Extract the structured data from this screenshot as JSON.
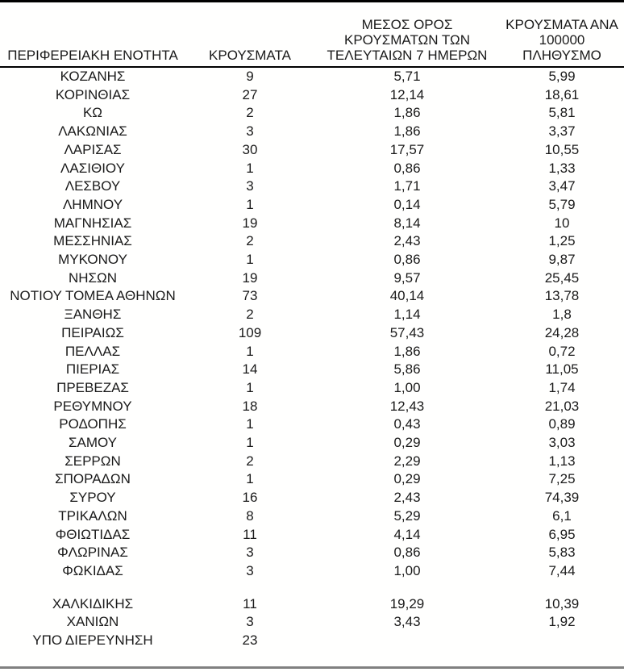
{
  "page": {
    "background_color": "#fffffe",
    "text_color": "#1a1a1a",
    "top_rule_color": "#000000",
    "header_rule_color": "#000000",
    "bottom_rule_color": "#808080"
  },
  "table": {
    "columns": [
      {
        "id": "region",
        "label": "ΠΕΡΙΦΕΡΕΙΑΚΗ ΕΝΟΤΗΤΑ"
      },
      {
        "id": "cases",
        "label": "ΚΡΟΥΣΜΑΤΑ"
      },
      {
        "id": "avg_7day",
        "label": "ΜΕΣΟΣ ΟΡΟΣ\nΚΡΟΥΣΜΑΤΩΝ ΤΩΝ\nΤΕΛΕΥΤΑΙΩΝ 7 ΗΜΕΡΩΝ"
      },
      {
        "id": "per_100k",
        "label": "ΚΡΟΥΣΜΑΤΑ ΑΝΑ\n100000 ΠΛΗΘΥΣΜΟ"
      }
    ],
    "rows": [
      {
        "region": "ΚΟΖΑΝΗΣ",
        "cases": "9",
        "avg_7day": "5,71",
        "per_100k": "5,99"
      },
      {
        "region": "ΚΟΡΙΝΘΙΑΣ",
        "cases": "27",
        "avg_7day": "12,14",
        "per_100k": "18,61"
      },
      {
        "region": "ΚΩ",
        "cases": "2",
        "avg_7day": "1,86",
        "per_100k": "5,81"
      },
      {
        "region": "ΛΑΚΩΝΙΑΣ",
        "cases": "3",
        "avg_7day": "1,86",
        "per_100k": "3,37"
      },
      {
        "region": "ΛΑΡΙΣΑΣ",
        "cases": "30",
        "avg_7day": "17,57",
        "per_100k": "10,55"
      },
      {
        "region": "ΛΑΣΙΘΙΟΥ",
        "cases": "1",
        "avg_7day": "0,86",
        "per_100k": "1,33"
      },
      {
        "region": "ΛΕΣΒΟΥ",
        "cases": "3",
        "avg_7day": "1,71",
        "per_100k": "3,47"
      },
      {
        "region": "ΛΗΜΝΟΥ",
        "cases": "1",
        "avg_7day": "0,14",
        "per_100k": "5,79"
      },
      {
        "region": "ΜΑΓΝΗΣΙΑΣ",
        "cases": "19",
        "avg_7day": "8,14",
        "per_100k": "10"
      },
      {
        "region": "ΜΕΣΣΗΝΙΑΣ",
        "cases": "2",
        "avg_7day": "2,43",
        "per_100k": "1,25"
      },
      {
        "region": "ΜΥΚΟΝΟΥ",
        "cases": "1",
        "avg_7day": "0,86",
        "per_100k": "9,87"
      },
      {
        "region": "ΝΗΣΩΝ",
        "cases": "19",
        "avg_7day": "9,57",
        "per_100k": "25,45"
      },
      {
        "region": "ΝΟΤΙΟΥ ΤΟΜΕΑ ΑΘΗΝΩΝ",
        "cases": "73",
        "avg_7day": "40,14",
        "per_100k": "13,78"
      },
      {
        "region": "ΞΑΝΘΗΣ",
        "cases": "2",
        "avg_7day": "1,14",
        "per_100k": "1,8"
      },
      {
        "region": "ΠΕΙΡΑΙΩΣ",
        "cases": "109",
        "avg_7day": "57,43",
        "per_100k": "24,28"
      },
      {
        "region": "ΠΕΛΛΑΣ",
        "cases": "1",
        "avg_7day": "1,86",
        "per_100k": "0,72"
      },
      {
        "region": "ΠΙΕΡΙΑΣ",
        "cases": "14",
        "avg_7day": "5,86",
        "per_100k": "11,05"
      },
      {
        "region": "ΠΡΕΒΕΖΑΣ",
        "cases": "1",
        "avg_7day": "1,00",
        "per_100k": "1,74"
      },
      {
        "region": "ΡΕΘΥΜΝΟΥ",
        "cases": "18",
        "avg_7day": "12,43",
        "per_100k": "21,03"
      },
      {
        "region": "ΡΟΔΟΠΗΣ",
        "cases": "1",
        "avg_7day": "0,43",
        "per_100k": "0,89"
      },
      {
        "region": "ΣΑΜΟΥ",
        "cases": "1",
        "avg_7day": "0,29",
        "per_100k": "3,03"
      },
      {
        "region": "ΣΕΡΡΩΝ",
        "cases": "2",
        "avg_7day": "2,29",
        "per_100k": "1,13"
      },
      {
        "region": "ΣΠΟΡΑΔΩΝ",
        "cases": "1",
        "avg_7day": "0,29",
        "per_100k": "7,25"
      },
      {
        "region": "ΣΥΡΟΥ",
        "cases": "16",
        "avg_7day": "2,43",
        "per_100k": "74,39"
      },
      {
        "region": "ΤΡΙΚΑΛΩΝ",
        "cases": "8",
        "avg_7day": "5,29",
        "per_100k": "6,1"
      },
      {
        "region": "ΦΘΙΩΤΙΔΑΣ",
        "cases": "11",
        "avg_7day": "4,14",
        "per_100k": "6,95"
      },
      {
        "region": "ΦΛΩΡΙΝΑΣ",
        "cases": "3",
        "avg_7day": "0,86",
        "per_100k": "5,83"
      },
      {
        "region": "ΦΩΚΙΔΑΣ",
        "cases": "3",
        "avg_7day": "1,00",
        "per_100k": "7,44"
      },
      {
        "region": "",
        "cases": "",
        "avg_7day": "",
        "per_100k": ""
      },
      {
        "region": "ΧΑΛΚΙΔΙΚΗΣ",
        "cases": "11",
        "avg_7day": "19,29",
        "per_100k": "10,39"
      },
      {
        "region": "ΧΑΝΙΩΝ",
        "cases": "3",
        "avg_7day": "3,43",
        "per_100k": "1,92"
      },
      {
        "region": "ΥΠΟ ΔΙΕΡΕΥΝΗΣΗ",
        "cases": "23",
        "avg_7day": "",
        "per_100k": ""
      }
    ]
  }
}
